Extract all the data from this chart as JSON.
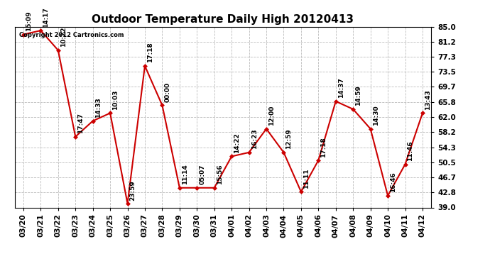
{
  "title": "Outdoor Temperature Daily High 20120413",
  "watermark": "Copyright 2012 Cartronics.com",
  "dates": [
    "03/20",
    "03/21",
    "03/22",
    "03/23",
    "03/24",
    "03/25",
    "03/26",
    "03/27",
    "03/28",
    "03/29",
    "03/30",
    "03/31",
    "04/01",
    "04/02",
    "04/03",
    "04/04",
    "04/05",
    "04/06",
    "04/07",
    "04/08",
    "04/09",
    "04/10",
    "04/11",
    "04/12"
  ],
  "values": [
    83.0,
    84.0,
    79.0,
    57.0,
    61.0,
    63.0,
    40.0,
    75.0,
    65.0,
    44.0,
    44.0,
    44.0,
    52.0,
    53.0,
    59.0,
    53.0,
    43.0,
    51.0,
    66.0,
    64.0,
    59.0,
    42.0,
    50.0,
    63.0
  ],
  "labels": [
    "15:09",
    "14:17",
    "10:22",
    "17:47",
    "14:33",
    "10:03",
    "23:59",
    "17:18",
    "00:00",
    "11:14",
    "05:07",
    "15:56",
    "14:22",
    "16:23",
    "12:00",
    "12:59",
    "11:11",
    "17:18",
    "14:37",
    "14:59",
    "14:30",
    "16:46",
    "11:46",
    "13:43"
  ],
  "yticks": [
    39.0,
    42.8,
    46.7,
    50.5,
    54.3,
    58.2,
    62.0,
    65.8,
    69.7,
    73.5,
    77.3,
    81.2,
    85.0
  ],
  "ymin": 39.0,
  "ymax": 85.0,
  "line_color": "#cc0000",
  "marker_color": "#cc0000",
  "bg_color": "#ffffff",
  "grid_color": "#bbbbbb",
  "title_fontsize": 11,
  "label_fontsize": 6.5,
  "tick_fontsize": 7.5,
  "watermark_fontsize": 6
}
